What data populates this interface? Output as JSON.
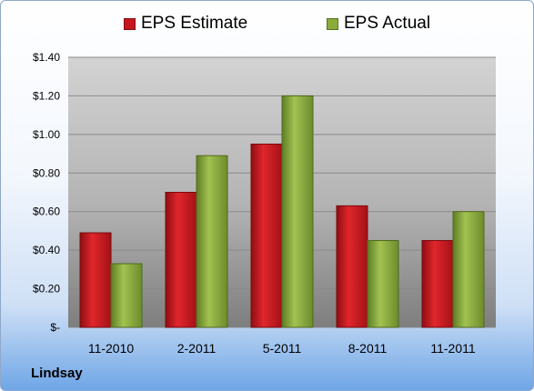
{
  "company": "Lindsay",
  "colors": {
    "estimate": "#c8161d",
    "actual": "#8aac3c"
  },
  "chart_data": {
    "type": "bar",
    "categories": [
      "11-2010",
      "2-2011",
      "5-2011",
      "8-2011",
      "11-2011"
    ],
    "series": [
      {
        "name": "EPS Estimate",
        "values": [
          0.49,
          0.7,
          0.95,
          0.63,
          0.45
        ]
      },
      {
        "name": "EPS Actual",
        "values": [
          0.33,
          0.89,
          1.2,
          0.45,
          0.6
        ]
      }
    ],
    "y_ticks": [
      "$-",
      "$0.20",
      "$0.40",
      "$0.60",
      "$0.80",
      "$1.00",
      "$1.20",
      "$1.40"
    ],
    "ylim": [
      0,
      1.4
    ],
    "grid": true,
    "legend_position": "top"
  }
}
